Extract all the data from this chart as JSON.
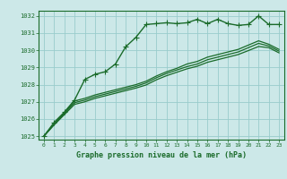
{
  "bg_color": "#cce8e8",
  "grid_color": "#99cccc",
  "line_color": "#1a6b2a",
  "title": "Graphe pression niveau de la mer (hPa)",
  "xlim": [
    -0.5,
    23.5
  ],
  "ylim": [
    1024.8,
    1032.3
  ],
  "yticks": [
    1025,
    1026,
    1027,
    1028,
    1029,
    1030,
    1031,
    1032
  ],
  "xticks": [
    0,
    1,
    2,
    3,
    4,
    5,
    6,
    7,
    8,
    9,
    10,
    11,
    12,
    13,
    14,
    15,
    16,
    17,
    18,
    19,
    20,
    21,
    22,
    23
  ],
  "series": [
    {
      "x": [
        0,
        1,
        2,
        3,
        4,
        5,
        6,
        7,
        8,
        9,
        10,
        11,
        12,
        13,
        14,
        15,
        16,
        17,
        18,
        19,
        20,
        21,
        22,
        23
      ],
      "y": [
        1025.0,
        1025.8,
        1026.4,
        1027.1,
        1028.3,
        1028.6,
        1028.75,
        1029.2,
        1030.2,
        1030.75,
        1031.5,
        1031.55,
        1031.6,
        1031.55,
        1031.6,
        1031.8,
        1031.55,
        1031.8,
        1031.55,
        1031.45,
        1031.5,
        1032.0,
        1031.5,
        1031.5
      ],
      "marker": "+",
      "lw": 1.0,
      "ms": 4
    },
    {
      "x": [
        0,
        1,
        2,
        3,
        4,
        5,
        6,
        7,
        8,
        9,
        10,
        11,
        12,
        13,
        14,
        15,
        16,
        17,
        18,
        19,
        20,
        21,
        22,
        23
      ],
      "y": [
        1025.0,
        1025.7,
        1026.35,
        1027.05,
        1027.2,
        1027.4,
        1027.55,
        1027.7,
        1027.85,
        1028.0,
        1028.2,
        1028.5,
        1028.75,
        1028.95,
        1029.2,
        1029.35,
        1029.6,
        1029.75,
        1029.9,
        1030.05,
        1030.3,
        1030.55,
        1030.35,
        1030.05
      ],
      "marker": null,
      "lw": 0.9,
      "ms": 0
    },
    {
      "x": [
        0,
        1,
        2,
        3,
        4,
        5,
        6,
        7,
        8,
        9,
        10,
        11,
        12,
        13,
        14,
        15,
        16,
        17,
        18,
        19,
        20,
        21,
        22,
        23
      ],
      "y": [
        1025.0,
        1025.7,
        1026.3,
        1026.95,
        1027.1,
        1027.3,
        1027.45,
        1027.6,
        1027.75,
        1027.9,
        1028.1,
        1028.4,
        1028.65,
        1028.85,
        1029.05,
        1029.2,
        1029.45,
        1029.6,
        1029.75,
        1029.9,
        1030.15,
        1030.4,
        1030.25,
        1029.95
      ],
      "marker": null,
      "lw": 0.9,
      "ms": 0
    },
    {
      "x": [
        0,
        1,
        2,
        3,
        4,
        5,
        6,
        7,
        8,
        9,
        10,
        11,
        12,
        13,
        14,
        15,
        16,
        17,
        18,
        19,
        20,
        21,
        22,
        23
      ],
      "y": [
        1025.0,
        1025.65,
        1026.25,
        1026.85,
        1027.0,
        1027.2,
        1027.35,
        1027.5,
        1027.65,
        1027.8,
        1027.98,
        1028.28,
        1028.52,
        1028.72,
        1028.92,
        1029.07,
        1029.3,
        1029.45,
        1029.6,
        1029.75,
        1029.98,
        1030.22,
        1030.15,
        1029.85
      ],
      "marker": null,
      "lw": 0.9,
      "ms": 0
    }
  ]
}
